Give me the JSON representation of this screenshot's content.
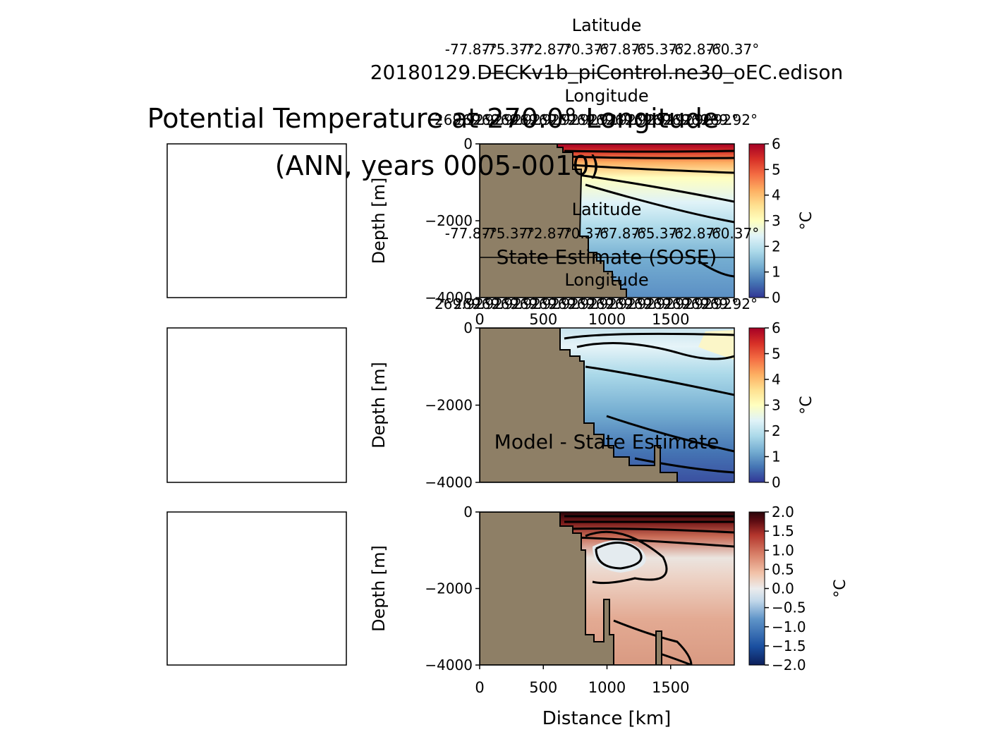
{
  "figure": {
    "suptitle": "Potential Temperature at 270.0° Longitude\n(ANN, years 0005-0010)"
  },
  "colors": {
    "land": "#8e7f66",
    "contour": "#000000",
    "temperature_cmap": [
      "#313695",
      "#4575b4",
      "#74add1",
      "#abd9e9",
      "#e0f3f8",
      "#ffffbf",
      "#fee090",
      "#fdae61",
      "#f46d43",
      "#d73027",
      "#a50026"
    ],
    "bias_cmap": [
      "#0c1f5a",
      "#1a4fa0",
      "#5f94c8",
      "#b7d3e8",
      "#ececec",
      "#f2c3a9",
      "#d9826a",
      "#b3352c",
      "#5e0c12",
      "#2a0509"
    ]
  },
  "chart_data": [
    {
      "type": "heatmap",
      "title": "20180129.DECKv1b_piControl.ne30_oEC.edison",
      "xlabel": "",
      "ylabel": "Depth [m]",
      "xlim": [
        0,
        2000
      ],
      "ylim": [
        -4000,
        0
      ],
      "yticks": [
        0,
        -2000,
        -4000
      ],
      "ytick_labels": [
        "0",
        "−2000",
        "−4000"
      ],
      "lat_axis_label": "Latitude",
      "lat_tick_labels": [
        "-77.87°",
        "-75.37°",
        "-72.87°",
        "-70.37°",
        "-67.87°",
        "-65.37°",
        "-62.87°",
        "-60.37°"
      ],
      "lon_axis_label": "Longitude",
      "lon_tick_labels": [
        "269.92°",
        "269.92°",
        "269.92°",
        "269.92°",
        "269.92°",
        "269.92°",
        "269.92°",
        "269.92°",
        "269.92°",
        "269.92°",
        "269.92°",
        "269.92°",
        "269.92°",
        "269.92°",
        "269.92°"
      ],
      "colorbar": {
        "label": "°C",
        "min": 0,
        "max": 6,
        "ticks": [
          "0",
          "1",
          "2",
          "3",
          "4",
          "5",
          "6"
        ]
      }
    },
    {
      "type": "heatmap",
      "title": "State Estimate (SOSE)",
      "xlabel": "",
      "ylabel": "Depth [m]",
      "xlim": [
        0,
        2000
      ],
      "ylim": [
        -4000,
        0
      ],
      "yticks": [
        0,
        -2000,
        -4000
      ],
      "ytick_labels": [
        "0",
        "−2000",
        "−4000"
      ],
      "xticks": [
        0,
        500,
        1000,
        1500
      ],
      "xtick_labels": [
        "0",
        "500",
        "1000",
        "1500"
      ],
      "lat_axis_label": "Latitude",
      "lat_tick_labels": [
        "-77.87°",
        "-75.37°",
        "-72.87°",
        "-70.37°",
        "-67.87°",
        "-65.37°",
        "-62.87°",
        "-60.37°"
      ],
      "lon_axis_label": "Longitude",
      "lon_tick_labels": [
        "269.92°",
        "269.92°",
        "269.92°",
        "269.92°",
        "269.92°",
        "269.92°",
        "269.92°",
        "269.92°",
        "269.92°",
        "269.92°",
        "269.92°",
        "269.92°",
        "269.92°",
        "269.92°",
        "269.92°"
      ],
      "colorbar": {
        "label": "°C",
        "min": 0,
        "max": 6,
        "ticks": [
          "0",
          "1",
          "2",
          "3",
          "4",
          "5",
          "6"
        ]
      }
    },
    {
      "type": "heatmap",
      "title": "Model - State Estimate",
      "xlabel": "Distance [km]",
      "ylabel": "Depth [m]",
      "xlim": [
        0,
        2000
      ],
      "ylim": [
        -4000,
        0
      ],
      "yticks": [
        0,
        -2000,
        -4000
      ],
      "ytick_labels": [
        "0",
        "−2000",
        "−4000"
      ],
      "xticks": [
        0,
        500,
        1000,
        1500
      ],
      "xtick_labels": [
        "0",
        "500",
        "1000",
        "1500"
      ],
      "colorbar": {
        "label": "°C",
        "min": -2.0,
        "max": 2.0,
        "ticks": [
          "2.0",
          "1.5",
          "1.0",
          "0.5",
          "0.0",
          "−0.5",
          "−1.0",
          "−1.5",
          "−2.0"
        ]
      }
    }
  ]
}
